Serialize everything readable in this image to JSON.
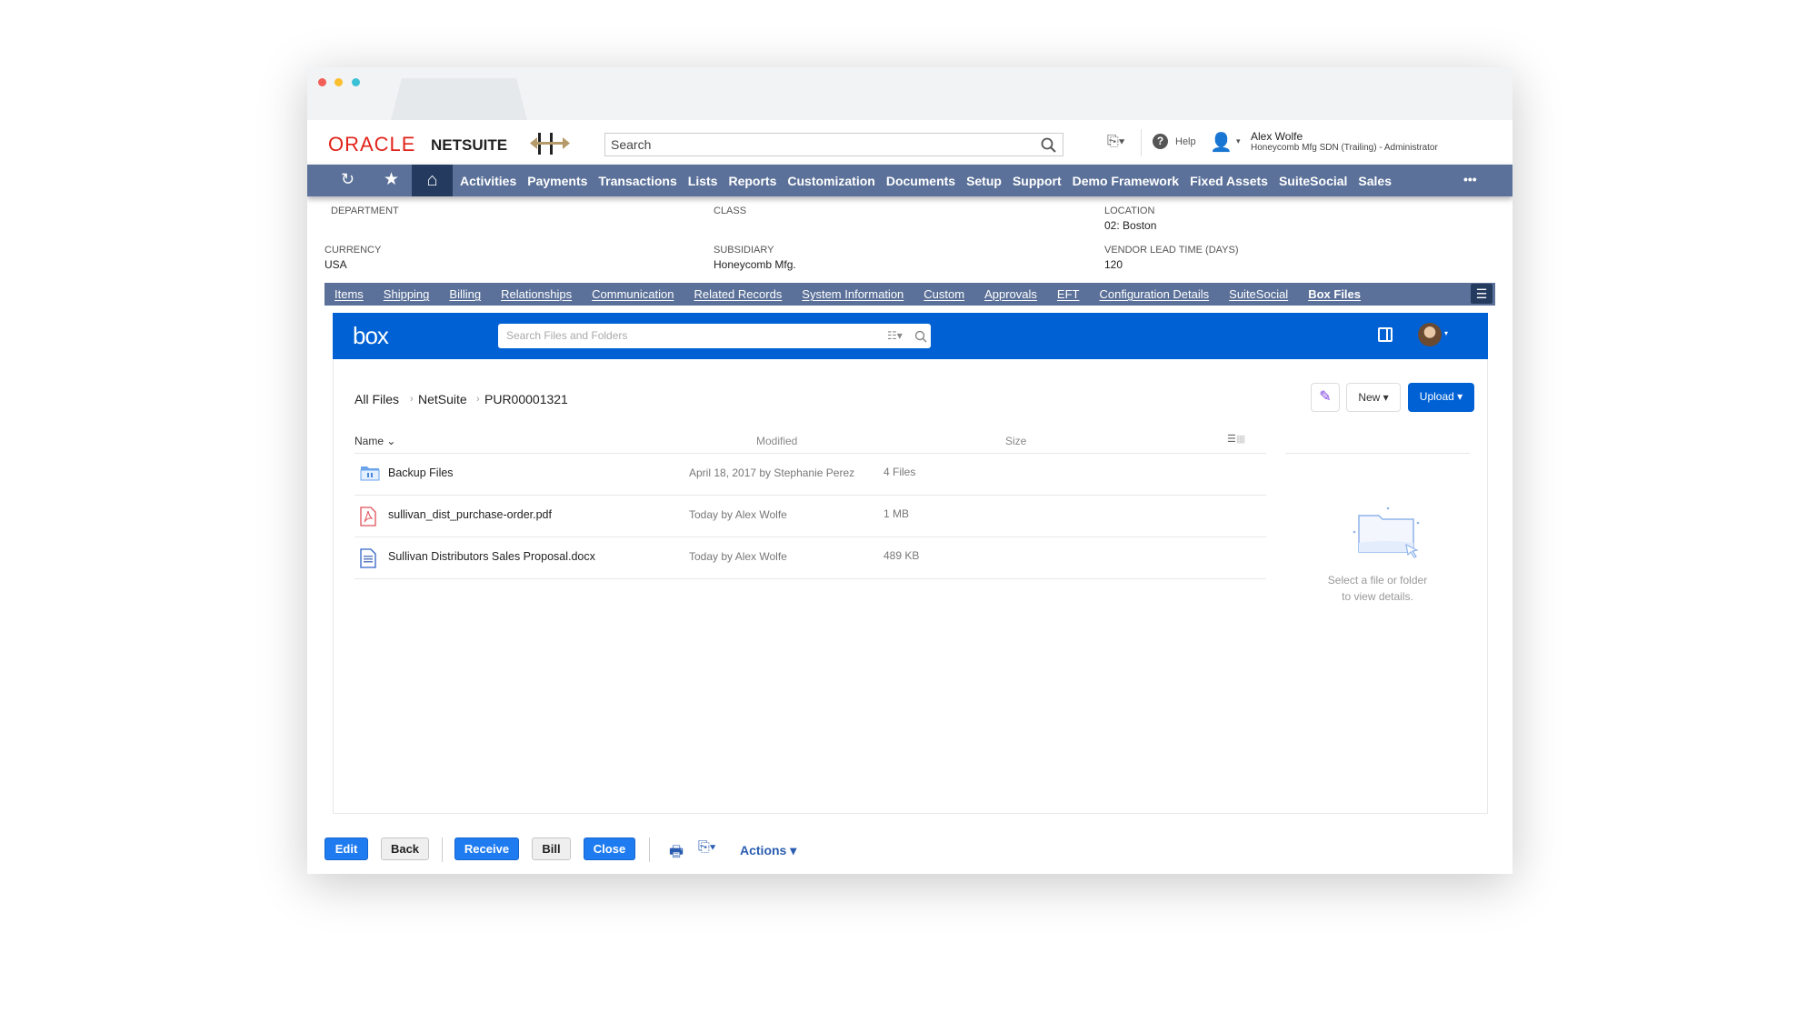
{
  "netsuite": {
    "logo_oracle": "ORACLE",
    "logo_netsuite": "NETSUITE",
    "search_placeholder": "Search",
    "help": "Help",
    "user_name": "Alex Wolfe",
    "user_role": "Honeycomb Mfg SDN (Trailing) - Administrator"
  },
  "nav": [
    "Activities",
    "Payments",
    "Transactions",
    "Lists",
    "Reports",
    "Customization",
    "Documents",
    "Setup",
    "Support",
    "Demo Framework",
    "Fixed Assets",
    "SuiteSocial",
    "Sales"
  ],
  "nav_more": "•••",
  "fields": {
    "department": {
      "label": "DEPARTMENT",
      "value": ""
    },
    "class": {
      "label": "CLASS",
      "value": ""
    },
    "location": {
      "label": "LOCATION",
      "value": "02: Boston"
    },
    "currency": {
      "label": "CURRENCY",
      "value": "USA"
    },
    "subsidiary": {
      "label": "SUBSIDIARY",
      "value": "Honeycomb Mfg."
    },
    "lead_time": {
      "label": "VENDOR LEAD TIME (DAYS)",
      "value": "120"
    }
  },
  "subtabs": [
    "Items",
    "Shipping",
    "Billing",
    "Relationships",
    "Communication",
    "Related Records",
    "System Information",
    "Custom",
    "Approvals",
    "EFT",
    "Configuration Details",
    "SuiteSocial",
    "Box Files"
  ],
  "active_subtab": "Box Files",
  "box": {
    "logo": "box",
    "search_placeholder": "Search Files and Folders",
    "breadcrumb": [
      "All Files",
      "NetSuite",
      "PUR00001321"
    ],
    "new_label": "New ▾",
    "upload_label": "Upload ▾",
    "columns": {
      "name": "Name ⌄",
      "modified": "Modified",
      "size": "Size"
    },
    "files": [
      {
        "name": "Backup Files",
        "modified": "April 18, 2017 by Stephanie Perez",
        "size": "4 Files",
        "icon": "folder-icon"
      },
      {
        "name": "sullivan_dist_purchase-order.pdf",
        "modified": "Today by Alex Wolfe",
        "size": "1 MB",
        "icon": "pdf-icon"
      },
      {
        "name": "Sullivan Distributors Sales Proposal.docx",
        "modified": "Today by Alex Wolfe",
        "size": "489 KB",
        "icon": "docx-icon"
      }
    ],
    "empty_line1": "Select a file or folder",
    "empty_line2": "to view details.",
    "accent": "#0061d5"
  },
  "actions": {
    "edit": "Edit",
    "back": "Back",
    "receive": "Receive",
    "bill": "Bill",
    "close": "Close",
    "actions": "Actions ▾"
  }
}
